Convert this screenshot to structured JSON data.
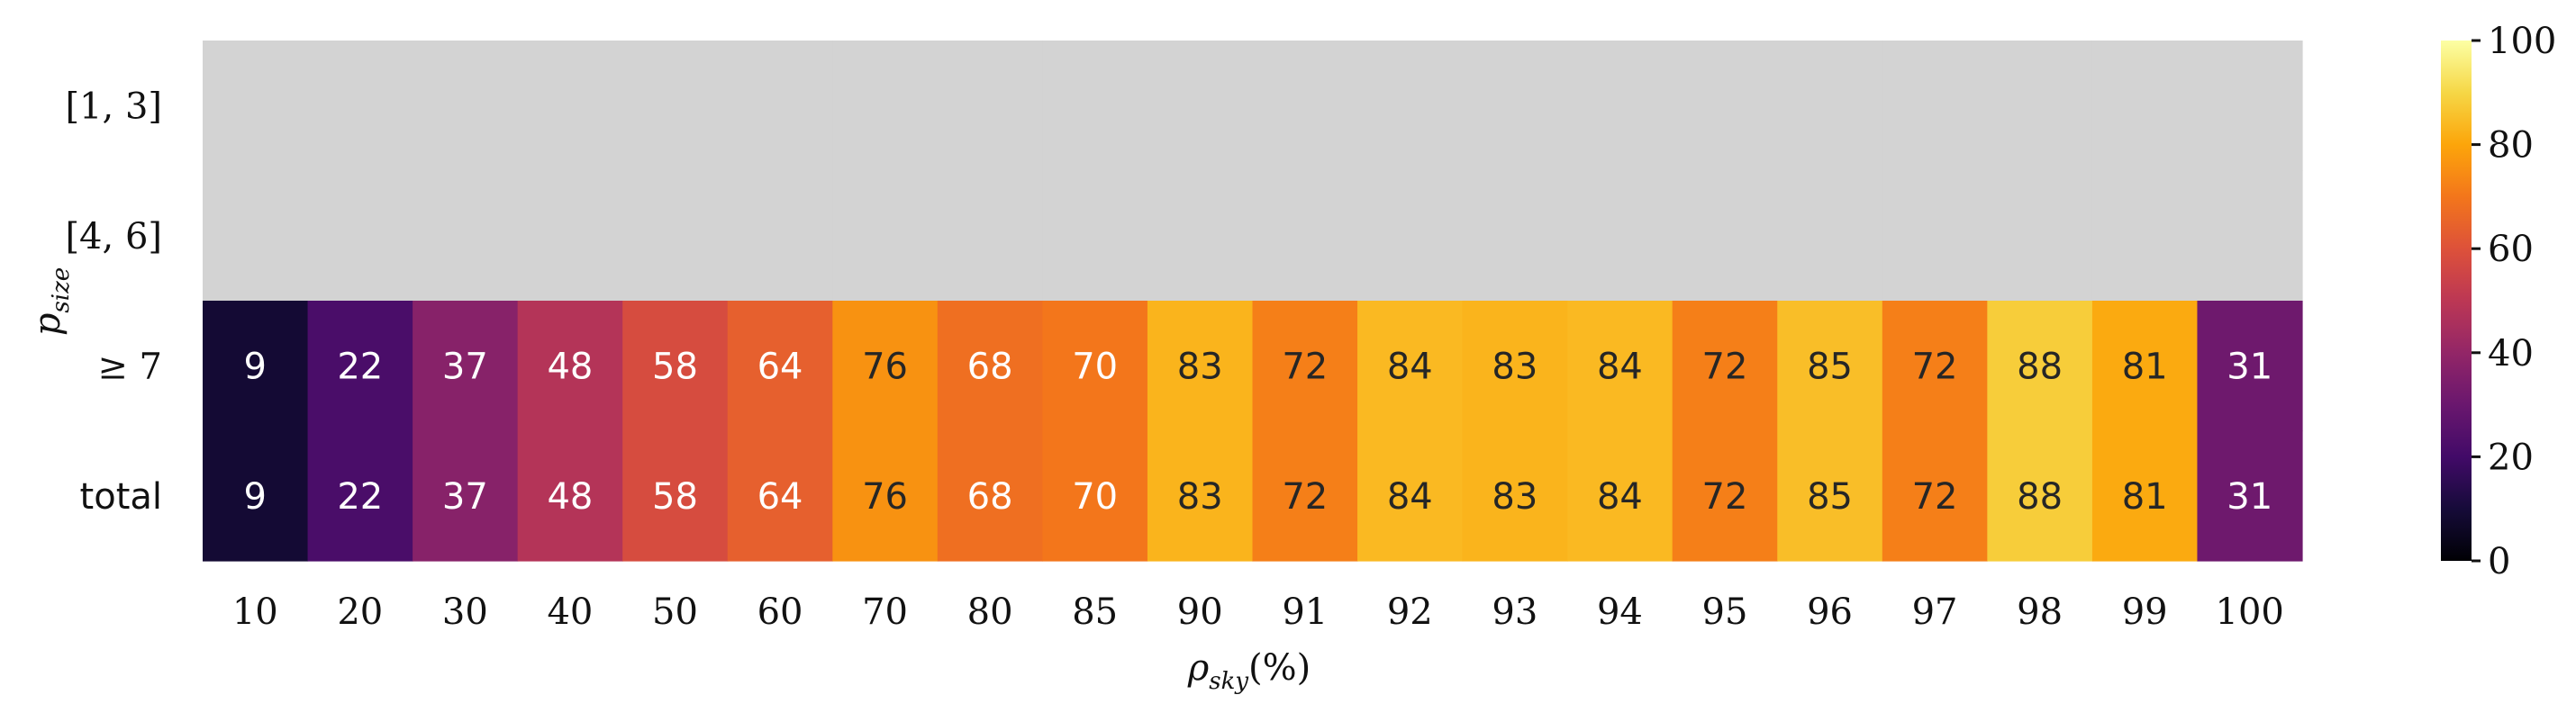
{
  "chart_data": {
    "type": "heatmap",
    "x_categories": [
      "10",
      "20",
      "30",
      "40",
      "50",
      "60",
      "70",
      "80",
      "85",
      "90",
      "91",
      "92",
      "93",
      "94",
      "95",
      "96",
      "97",
      "98",
      "99",
      "100"
    ],
    "y_categories": [
      "[1, 3]",
      "[4, 6]",
      "≥ 7",
      "total"
    ],
    "values": [
      [
        null,
        null,
        null,
        null,
        null,
        null,
        null,
        null,
        null,
        null,
        null,
        null,
        null,
        null,
        null,
        null,
        null,
        null,
        null,
        null
      ],
      [
        null,
        null,
        null,
        null,
        null,
        null,
        null,
        null,
        null,
        null,
        null,
        null,
        null,
        null,
        null,
        null,
        null,
        null,
        null,
        null
      ],
      [
        9,
        22,
        37,
        48,
        58,
        64,
        76,
        68,
        70,
        83,
        72,
        84,
        83,
        84,
        72,
        85,
        72,
        88,
        81,
        31
      ],
      [
        9,
        22,
        37,
        48,
        58,
        64,
        76,
        68,
        70,
        83,
        72,
        84,
        83,
        84,
        72,
        85,
        72,
        88,
        81,
        31
      ]
    ],
    "xlabel": "ρ",
    "xlabel_sub": "sky",
    "xlabel_suffix": "(%)",
    "ylabel": "p",
    "ylabel_sub": "size",
    "colorbar": {
      "min": 0,
      "max": 100,
      "ticks": [
        "0",
        "20",
        "40",
        "60",
        "80",
        "100"
      ]
    },
    "colormap": "inferno",
    "missing_color": "#d3d3d3"
  }
}
